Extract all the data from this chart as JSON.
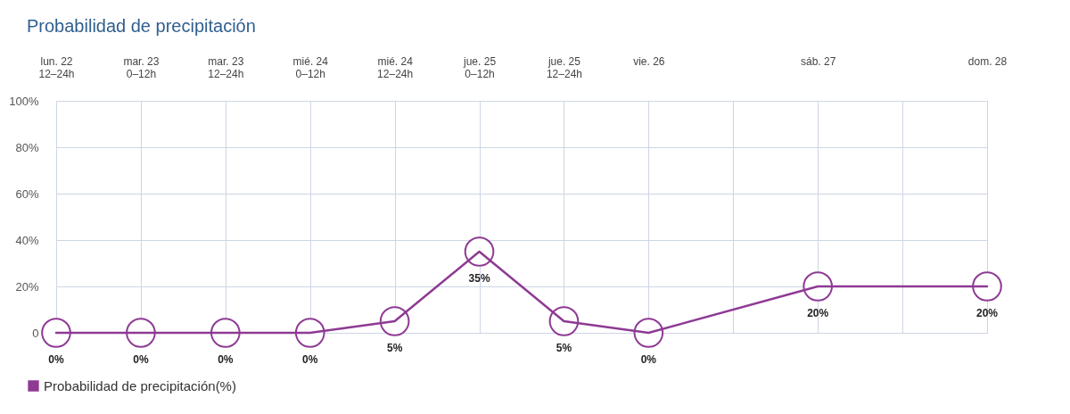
{
  "chart_data": {
    "type": "line",
    "title": "Probabilidad de precipitación",
    "categories": [
      "lun. 22\n12–24h",
      "mar. 23\n0–12h",
      "mar. 23\n12–24h",
      "mié. 24\n0–12h",
      "mié. 24\n12–24h",
      "jue. 25\n0–12h",
      "jue. 25\n12–24h",
      "vie. 26",
      null,
      "sáb. 27",
      null,
      "dom. 28"
    ],
    "ylim": [
      0,
      100
    ],
    "yticks": [
      0,
      {
        "value": 20,
        "label": "20%"
      },
      {
        "value": 40,
        "label": "40%"
      },
      {
        "value": 60,
        "label": "60%"
      },
      {
        "value": 80,
        "label": "80%"
      },
      {
        "value": 100,
        "label": "100%"
      }
    ],
    "series": [
      {
        "name": "Probabilidad de precipitación(%)",
        "color": "#8e3a94",
        "values": [
          0,
          0,
          0,
          0,
          5,
          35,
          5,
          0,
          null,
          20,
          null,
          20
        ],
        "value_labels": [
          "0%",
          "0%",
          "0%",
          "0%",
          "5%",
          "35%",
          "5%",
          "0%",
          null,
          "20%",
          null,
          "20%"
        ]
      }
    ],
    "grid": true,
    "legend": "bottom left",
    "marker": "circle",
    "line_style": "solid"
  }
}
